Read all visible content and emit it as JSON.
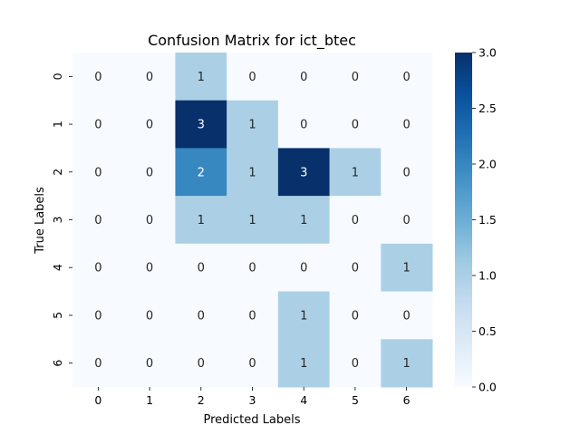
{
  "chart_data": {
    "type": "heatmap",
    "title": "Confusion Matrix for ict_btec",
    "xlabel": "Predicted Labels",
    "ylabel": "True Labels",
    "x_categories": [
      "0",
      "1",
      "2",
      "3",
      "4",
      "5",
      "6"
    ],
    "y_categories": [
      "0",
      "1",
      "2",
      "3",
      "4",
      "5",
      "6"
    ],
    "matrix": [
      [
        0,
        0,
        1,
        0,
        0,
        0,
        0
      ],
      [
        0,
        0,
        3,
        1,
        0,
        0,
        0
      ],
      [
        0,
        0,
        2,
        1,
        3,
        1,
        0
      ],
      [
        0,
        0,
        1,
        1,
        1,
        0,
        0
      ],
      [
        0,
        0,
        0,
        0,
        0,
        0,
        1
      ],
      [
        0,
        0,
        0,
        0,
        1,
        0,
        0
      ],
      [
        0,
        0,
        0,
        0,
        1,
        0,
        1
      ]
    ],
    "value_range": [
      0,
      3
    ],
    "colormap": "Blues",
    "colorbar_ticks": [
      "0.0",
      "0.5",
      "1.0",
      "1.5",
      "2.0",
      "2.5",
      "3.0"
    ],
    "colorbar_tick_values": [
      0,
      0.5,
      1,
      1.5,
      2,
      2.5,
      3
    ],
    "colorbar_placement": "right",
    "annotations": true,
    "grid": false
  }
}
